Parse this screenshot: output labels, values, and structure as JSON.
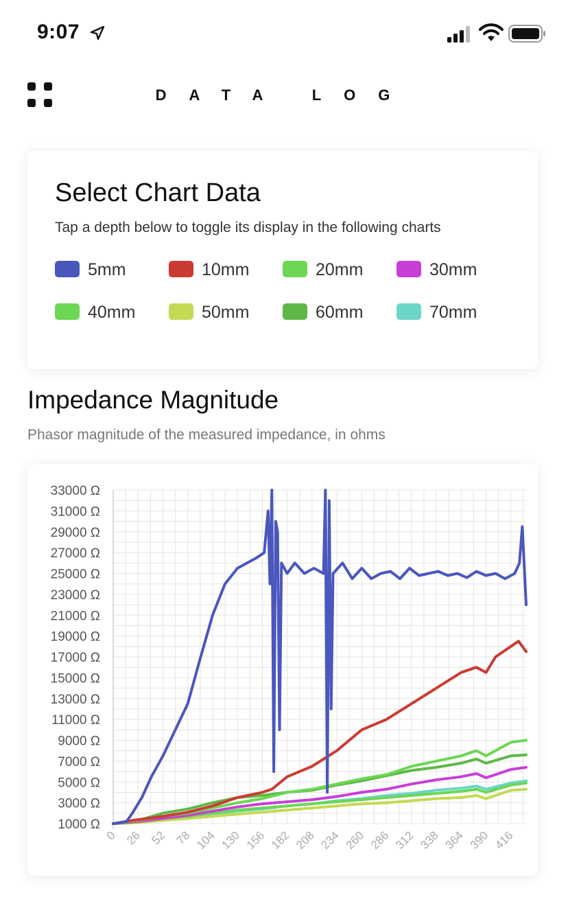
{
  "status": {
    "time": "9:07",
    "icons": [
      "location-arrow-icon",
      "cellular-signal-icon",
      "wifi-icon",
      "battery-icon"
    ]
  },
  "header": {
    "title": "DATA LOG",
    "menu_icon": "grid-menu-icon"
  },
  "select_card": {
    "title": "Select Chart Data",
    "subtitle": "Tap a depth below to toggle its display in the following charts",
    "depths": [
      {
        "label": "5mm",
        "color": "#4a57bd"
      },
      {
        "label": "10mm",
        "color": "#cc3b33"
      },
      {
        "label": "20mm",
        "color": "#6cd754"
      },
      {
        "label": "30mm",
        "color": "#c73fd6"
      },
      {
        "label": "40mm",
        "color": "#6cd754"
      },
      {
        "label": "50mm",
        "color": "#c5d954"
      },
      {
        "label": "60mm",
        "color": "#5fb846"
      },
      {
        "label": "70mm",
        "color": "#6ad6c6"
      }
    ]
  },
  "impedance": {
    "title": "Impedance Magnitude",
    "subtitle": "Phasor magnitude of the measured impedance, in ohms"
  },
  "chart_data": {
    "type": "line",
    "title": "Impedance Magnitude",
    "subtitle": "Phasor magnitude of the measured impedance, in ohms",
    "ylim": [
      0,
      33000
    ],
    "y_ticks": [
      "33000 Ω",
      "31000 Ω",
      "29000 Ω",
      "27000 Ω",
      "25000 Ω",
      "23000 Ω",
      "21000 Ω",
      "19000 Ω",
      "17000 Ω",
      "15000 Ω",
      "13000 Ω",
      "11000 Ω",
      "9000 Ω",
      "7000 Ω",
      "5000 Ω",
      "3000 Ω",
      "1000 Ω"
    ],
    "x_ticks": [
      "0",
      "26",
      "52",
      "78",
      "104",
      "130",
      "156",
      "182",
      "208",
      "234",
      "260",
      "286",
      "312",
      "338",
      "364",
      "390",
      "416"
    ],
    "xlim": [
      0,
      432
    ],
    "grid": true,
    "series": [
      {
        "name": "5mm",
        "color": "#4a57bd",
        "points": [
          [
            0,
            1000
          ],
          [
            14,
            1200
          ],
          [
            20,
            2000
          ],
          [
            30,
            3500
          ],
          [
            40,
            5500
          ],
          [
            52,
            7500
          ],
          [
            65,
            10000
          ],
          [
            78,
            12500
          ],
          [
            90,
            16500
          ],
          [
            104,
            21000
          ],
          [
            117,
            24000
          ],
          [
            130,
            25500
          ],
          [
            140,
            26000
          ],
          [
            150,
            26500
          ],
          [
            158,
            27000
          ],
          [
            162,
            31000
          ],
          [
            164,
            24000
          ],
          [
            166,
            33000
          ],
          [
            168,
            6000
          ],
          [
            170,
            30000
          ],
          [
            172,
            29000
          ],
          [
            174,
            10000
          ],
          [
            176,
            26000
          ],
          [
            182,
            25000
          ],
          [
            190,
            26000
          ],
          [
            200,
            25000
          ],
          [
            210,
            25500
          ],
          [
            220,
            25000
          ],
          [
            222,
            33000
          ],
          [
            224,
            4000
          ],
          [
            226,
            32000
          ],
          [
            228,
            12000
          ],
          [
            230,
            25000
          ],
          [
            240,
            26000
          ],
          [
            250,
            24500
          ],
          [
            260,
            25500
          ],
          [
            270,
            24500
          ],
          [
            280,
            25000
          ],
          [
            290,
            25200
          ],
          [
            300,
            24500
          ],
          [
            310,
            25500
          ],
          [
            320,
            24800
          ],
          [
            330,
            25000
          ],
          [
            340,
            25200
          ],
          [
            350,
            24800
          ],
          [
            360,
            25000
          ],
          [
            370,
            24600
          ],
          [
            380,
            25200
          ],
          [
            390,
            24800
          ],
          [
            400,
            25000
          ],
          [
            410,
            24500
          ],
          [
            420,
            25000
          ],
          [
            425,
            26000
          ],
          [
            428,
            29500
          ],
          [
            432,
            22000
          ]
        ]
      },
      {
        "name": "10mm",
        "color": "#cc3b33",
        "points": [
          [
            0,
            1000
          ],
          [
            20,
            1300
          ],
          [
            52,
            1700
          ],
          [
            78,
            2100
          ],
          [
            104,
            2700
          ],
          [
            130,
            3500
          ],
          [
            156,
            4000
          ],
          [
            166,
            4300
          ],
          [
            182,
            5500
          ],
          [
            208,
            6500
          ],
          [
            234,
            8000
          ],
          [
            260,
            10000
          ],
          [
            286,
            11000
          ],
          [
            312,
            12500
          ],
          [
            338,
            14000
          ],
          [
            364,
            15500
          ],
          [
            380,
            16000
          ],
          [
            390,
            15500
          ],
          [
            400,
            17000
          ],
          [
            416,
            18000
          ],
          [
            424,
            18500
          ],
          [
            432,
            17500
          ]
        ]
      },
      {
        "name": "20mm",
        "color": "#6cd754",
        "points": [
          [
            0,
            1000
          ],
          [
            26,
            1300
          ],
          [
            52,
            1700
          ],
          [
            78,
            2000
          ],
          [
            104,
            2500
          ],
          [
            130,
            3000
          ],
          [
            156,
            3400
          ],
          [
            182,
            4000
          ],
          [
            208,
            4300
          ],
          [
            234,
            4800
          ],
          [
            260,
            5300
          ],
          [
            286,
            5700
          ],
          [
            312,
            6500
          ],
          [
            338,
            7000
          ],
          [
            364,
            7500
          ],
          [
            380,
            8000
          ],
          [
            390,
            7500
          ],
          [
            416,
            8800
          ],
          [
            432,
            9000
          ]
        ]
      },
      {
        "name": "30mm",
        "color": "#c73fd6",
        "points": [
          [
            0,
            1000
          ],
          [
            26,
            1200
          ],
          [
            52,
            1500
          ],
          [
            78,
            1800
          ],
          [
            104,
            2200
          ],
          [
            130,
            2600
          ],
          [
            156,
            2900
          ],
          [
            182,
            3100
          ],
          [
            208,
            3300
          ],
          [
            234,
            3600
          ],
          [
            260,
            4000
          ],
          [
            286,
            4300
          ],
          [
            312,
            4800
          ],
          [
            338,
            5200
          ],
          [
            364,
            5500
          ],
          [
            380,
            5800
          ],
          [
            390,
            5400
          ],
          [
            416,
            6200
          ],
          [
            432,
            6400
          ]
        ]
      },
      {
        "name": "40mm",
        "color": "#6cd754",
        "points": [
          [
            0,
            1000
          ],
          [
            26,
            1200
          ],
          [
            52,
            1500
          ],
          [
            78,
            1700
          ],
          [
            104,
            2000
          ],
          [
            130,
            2300
          ],
          [
            156,
            2500
          ],
          [
            182,
            2700
          ],
          [
            208,
            2900
          ],
          [
            234,
            3100
          ],
          [
            260,
            3300
          ],
          [
            286,
            3500
          ],
          [
            312,
            3700
          ],
          [
            338,
            3900
          ],
          [
            364,
            4100
          ],
          [
            380,
            4300
          ],
          [
            390,
            4000
          ],
          [
            416,
            4700
          ],
          [
            432,
            4900
          ]
        ]
      },
      {
        "name": "50mm",
        "color": "#c5d954",
        "points": [
          [
            0,
            1000
          ],
          [
            26,
            1100
          ],
          [
            52,
            1300
          ],
          [
            78,
            1500
          ],
          [
            104,
            1700
          ],
          [
            130,
            1900
          ],
          [
            156,
            2100
          ],
          [
            182,
            2300
          ],
          [
            208,
            2500
          ],
          [
            234,
            2700
          ],
          [
            260,
            2900
          ],
          [
            286,
            3000
          ],
          [
            312,
            3200
          ],
          [
            338,
            3400
          ],
          [
            364,
            3500
          ],
          [
            380,
            3700
          ],
          [
            390,
            3400
          ],
          [
            416,
            4200
          ],
          [
            432,
            4300
          ]
        ]
      },
      {
        "name": "60mm",
        "color": "#5fb846",
        "points": [
          [
            0,
            1000
          ],
          [
            26,
            1300
          ],
          [
            52,
            2000
          ],
          [
            78,
            2400
          ],
          [
            104,
            3000
          ],
          [
            130,
            3500
          ],
          [
            156,
            3700
          ],
          [
            182,
            4000
          ],
          [
            208,
            4200
          ],
          [
            234,
            4700
          ],
          [
            260,
            5100
          ],
          [
            286,
            5600
          ],
          [
            312,
            6100
          ],
          [
            338,
            6400
          ],
          [
            364,
            6800
          ],
          [
            380,
            7200
          ],
          [
            390,
            6800
          ],
          [
            416,
            7500
          ],
          [
            432,
            7600
          ]
        ]
      },
      {
        "name": "70mm",
        "color": "#6ad6c6",
        "points": [
          [
            0,
            1000
          ],
          [
            26,
            1150
          ],
          [
            52,
            1400
          ],
          [
            78,
            1600
          ],
          [
            104,
            1900
          ],
          [
            130,
            2200
          ],
          [
            156,
            2400
          ],
          [
            182,
            2700
          ],
          [
            208,
            2900
          ],
          [
            234,
            3200
          ],
          [
            260,
            3400
          ],
          [
            286,
            3700
          ],
          [
            312,
            3900
          ],
          [
            338,
            4200
          ],
          [
            364,
            4400
          ],
          [
            380,
            4600
          ],
          [
            390,
            4300
          ],
          [
            416,
            4900
          ],
          [
            432,
            5100
          ]
        ]
      }
    ]
  }
}
